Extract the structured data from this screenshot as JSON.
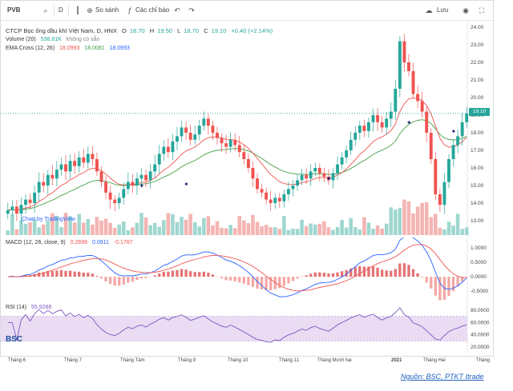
{
  "toolbar": {
    "symbol": "PVB",
    "interval": "D",
    "compare_label": "So sánh",
    "indicators_label": "Các chỉ báo",
    "save_label": "Lưu",
    "icons": [
      "search-icon",
      "bar-style-icon",
      "plus-icon",
      "indicator-icon",
      "undo-icon",
      "redo-icon",
      "cloud-icon",
      "camera-icon",
      "fullscreen-icon"
    ]
  },
  "header": {
    "title": "CTCP Bọc ống dầu khí Việt Nam, D, HNX",
    "ohlc": {
      "o_label": "O",
      "o": "18.70",
      "h_label": "H",
      "h": "19.50",
      "l_label": "L",
      "l": "18.70",
      "c_label": "C",
      "c": "19.10",
      "change": "+0.40 (+2.14%)"
    },
    "volume_label": "Volume (20)",
    "volume_value": "538.81K",
    "volume_extra": "không có sẵn",
    "ema_label": "EMA Cross (12, 26)",
    "ema_v1": "18.0993",
    "ema_v2": "18.0081",
    "ema_v3": "18.0993"
  },
  "macd": {
    "label": "MACD (12, 26, close, 9)",
    "v1": "0.2699",
    "v2": "0.0911",
    "v3": "-0.1787"
  },
  "rsi": {
    "label": "RSI (14)",
    "value": "55.9288"
  },
  "chart_by": "Chart by TradingView",
  "watermark": "BSC",
  "price_tag": "19.10",
  "price_axis": [
    "24.00",
    "23.00",
    "22.00",
    "21.00",
    "20.00",
    "19.00",
    "18.00",
    "17.00",
    "16.00",
    "15.00",
    "14.00",
    "13.00"
  ],
  "macd_axis": [
    "1.0000",
    "0.5000",
    "0.0000",
    "-0.5000"
  ],
  "rsi_axis": [
    "80.0000",
    "60.0000",
    "40.0000",
    "20.0000"
  ],
  "x_labels": [
    "Tháng 6",
    "Tháng 7",
    "Tháng Tám",
    "Tháng 9",
    "Tháng 10",
    "Tháng 11",
    "Tháng Mười hai",
    "2021",
    "Tháng Hai",
    "Tháng"
  ],
  "source": "Nguồn: BSC, PTKT Itrade",
  "colors": {
    "up": "#26a69a",
    "down": "#ef5350",
    "ema_fast": "#ef5350",
    "ema_slow": "#43a047",
    "macd": "#2962ff",
    "signal": "#ef5350",
    "rsi": "#7e57c2",
    "rsi_band": "#e9dcf3"
  },
  "chart_data": {
    "type": "candlestick",
    "ylim": [
      13,
      24
    ],
    "close": [
      13.6,
      13.8,
      13.4,
      13.9,
      14.2,
      14.0,
      14.6,
      15.2,
      15.0,
      15.6,
      15.4,
      15.9,
      16.2,
      15.8,
      16.4,
      16.1,
      16.6,
      16.3,
      16.8,
      16.5,
      15.8,
      15.2,
      14.6,
      14.2,
      14.0,
      14.3,
      14.8,
      15.2,
      15.0,
      15.4,
      15.6,
      15.3,
      15.8,
      16.2,
      16.8,
      17.2,
      16.9,
      17.5,
      17.8,
      18.3,
      18.0,
      17.6,
      17.9,
      18.4,
      18.8,
      18.4,
      18.0,
      17.7,
      17.4,
      17.2,
      17.6,
      17.3,
      16.9,
      16.5,
      16.0,
      15.4,
      14.8,
      14.6,
      14.2,
      14.0,
      14.3,
      14.1,
      14.5,
      14.8,
      15.0,
      15.3,
      15.6,
      15.4,
      15.8,
      16.0,
      15.7,
      15.5,
      15.3,
      15.7,
      16.2,
      16.6,
      17.0,
      17.6,
      18.0,
      18.4,
      18.1,
      18.6,
      19.0,
      18.6,
      18.3,
      18.8,
      19.2,
      20.5,
      23.2,
      22.0,
      21.5,
      20.2,
      19.8,
      19.2,
      18.0,
      16.5,
      14.5,
      13.9,
      15.2,
      16.5,
      17.3,
      17.8,
      18.6,
      19.1
    ]
  }
}
